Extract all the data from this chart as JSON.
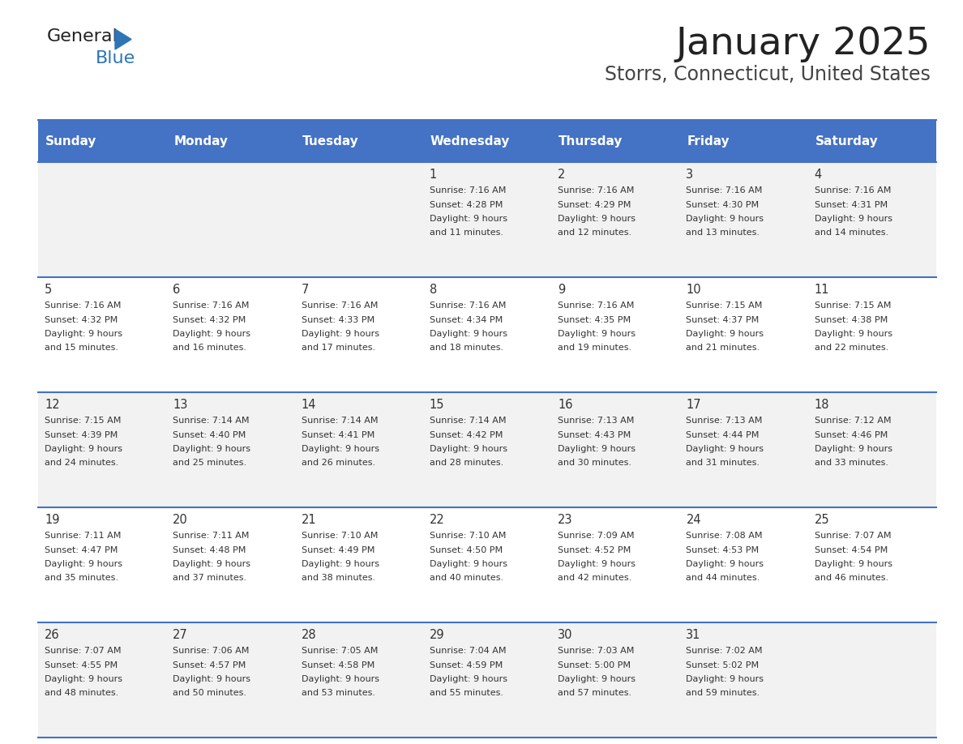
{
  "title": "January 2025",
  "subtitle": "Storrs, Connecticut, United States",
  "header_color": "#4472C4",
  "header_text_color": "#FFFFFF",
  "cell_bg_even": "#F2F2F2",
  "cell_bg_odd": "#FFFFFF",
  "day_names": [
    "Sunday",
    "Monday",
    "Tuesday",
    "Wednesday",
    "Thursday",
    "Friday",
    "Saturday"
  ],
  "title_color": "#222222",
  "subtitle_color": "#444444",
  "number_color": "#333333",
  "info_color": "#333333",
  "line_color": "#4472C4",
  "logo_general_color": "#222222",
  "logo_blue_color": "#2E75B6",
  "days": [
    {
      "day": 1,
      "col": 3,
      "row": 0,
      "sunrise": "7:16 AM",
      "sunset": "4:28 PM",
      "daylight": "9 hours and 11 minutes."
    },
    {
      "day": 2,
      "col": 4,
      "row": 0,
      "sunrise": "7:16 AM",
      "sunset": "4:29 PM",
      "daylight": "9 hours and 12 minutes."
    },
    {
      "day": 3,
      "col": 5,
      "row": 0,
      "sunrise": "7:16 AM",
      "sunset": "4:30 PM",
      "daylight": "9 hours and 13 minutes."
    },
    {
      "day": 4,
      "col": 6,
      "row": 0,
      "sunrise": "7:16 AM",
      "sunset": "4:31 PM",
      "daylight": "9 hours and 14 minutes."
    },
    {
      "day": 5,
      "col": 0,
      "row": 1,
      "sunrise": "7:16 AM",
      "sunset": "4:32 PM",
      "daylight": "9 hours and 15 minutes."
    },
    {
      "day": 6,
      "col": 1,
      "row": 1,
      "sunrise": "7:16 AM",
      "sunset": "4:32 PM",
      "daylight": "9 hours and 16 minutes."
    },
    {
      "day": 7,
      "col": 2,
      "row": 1,
      "sunrise": "7:16 AM",
      "sunset": "4:33 PM",
      "daylight": "9 hours and 17 minutes."
    },
    {
      "day": 8,
      "col": 3,
      "row": 1,
      "sunrise": "7:16 AM",
      "sunset": "4:34 PM",
      "daylight": "9 hours and 18 minutes."
    },
    {
      "day": 9,
      "col": 4,
      "row": 1,
      "sunrise": "7:16 AM",
      "sunset": "4:35 PM",
      "daylight": "9 hours and 19 minutes."
    },
    {
      "day": 10,
      "col": 5,
      "row": 1,
      "sunrise": "7:15 AM",
      "sunset": "4:37 PM",
      "daylight": "9 hours and 21 minutes."
    },
    {
      "day": 11,
      "col": 6,
      "row": 1,
      "sunrise": "7:15 AM",
      "sunset": "4:38 PM",
      "daylight": "9 hours and 22 minutes."
    },
    {
      "day": 12,
      "col": 0,
      "row": 2,
      "sunrise": "7:15 AM",
      "sunset": "4:39 PM",
      "daylight": "9 hours and 24 minutes."
    },
    {
      "day": 13,
      "col": 1,
      "row": 2,
      "sunrise": "7:14 AM",
      "sunset": "4:40 PM",
      "daylight": "9 hours and 25 minutes."
    },
    {
      "day": 14,
      "col": 2,
      "row": 2,
      "sunrise": "7:14 AM",
      "sunset": "4:41 PM",
      "daylight": "9 hours and 26 minutes."
    },
    {
      "day": 15,
      "col": 3,
      "row": 2,
      "sunrise": "7:14 AM",
      "sunset": "4:42 PM",
      "daylight": "9 hours and 28 minutes."
    },
    {
      "day": 16,
      "col": 4,
      "row": 2,
      "sunrise": "7:13 AM",
      "sunset": "4:43 PM",
      "daylight": "9 hours and 30 minutes."
    },
    {
      "day": 17,
      "col": 5,
      "row": 2,
      "sunrise": "7:13 AM",
      "sunset": "4:44 PM",
      "daylight": "9 hours and 31 minutes."
    },
    {
      "day": 18,
      "col": 6,
      "row": 2,
      "sunrise": "7:12 AM",
      "sunset": "4:46 PM",
      "daylight": "9 hours and 33 minutes."
    },
    {
      "day": 19,
      "col": 0,
      "row": 3,
      "sunrise": "7:11 AM",
      "sunset": "4:47 PM",
      "daylight": "9 hours and 35 minutes."
    },
    {
      "day": 20,
      "col": 1,
      "row": 3,
      "sunrise": "7:11 AM",
      "sunset": "4:48 PM",
      "daylight": "9 hours and 37 minutes."
    },
    {
      "day": 21,
      "col": 2,
      "row": 3,
      "sunrise": "7:10 AM",
      "sunset": "4:49 PM",
      "daylight": "9 hours and 38 minutes."
    },
    {
      "day": 22,
      "col": 3,
      "row": 3,
      "sunrise": "7:10 AM",
      "sunset": "4:50 PM",
      "daylight": "9 hours and 40 minutes."
    },
    {
      "day": 23,
      "col": 4,
      "row": 3,
      "sunrise": "7:09 AM",
      "sunset": "4:52 PM",
      "daylight": "9 hours and 42 minutes."
    },
    {
      "day": 24,
      "col": 5,
      "row": 3,
      "sunrise": "7:08 AM",
      "sunset": "4:53 PM",
      "daylight": "9 hours and 44 minutes."
    },
    {
      "day": 25,
      "col": 6,
      "row": 3,
      "sunrise": "7:07 AM",
      "sunset": "4:54 PM",
      "daylight": "9 hours and 46 minutes."
    },
    {
      "day": 26,
      "col": 0,
      "row": 4,
      "sunrise": "7:07 AM",
      "sunset": "4:55 PM",
      "daylight": "9 hours and 48 minutes."
    },
    {
      "day": 27,
      "col": 1,
      "row": 4,
      "sunrise": "7:06 AM",
      "sunset": "4:57 PM",
      "daylight": "9 hours and 50 minutes."
    },
    {
      "day": 28,
      "col": 2,
      "row": 4,
      "sunrise": "7:05 AM",
      "sunset": "4:58 PM",
      "daylight": "9 hours and 53 minutes."
    },
    {
      "day": 29,
      "col": 3,
      "row": 4,
      "sunrise": "7:04 AM",
      "sunset": "4:59 PM",
      "daylight": "9 hours and 55 minutes."
    },
    {
      "day": 30,
      "col": 4,
      "row": 4,
      "sunrise": "7:03 AM",
      "sunset": "5:00 PM",
      "daylight": "9 hours and 57 minutes."
    },
    {
      "day": 31,
      "col": 5,
      "row": 4,
      "sunrise": "7:02 AM",
      "sunset": "5:02 PM",
      "daylight": "9 hours and 59 minutes."
    }
  ]
}
